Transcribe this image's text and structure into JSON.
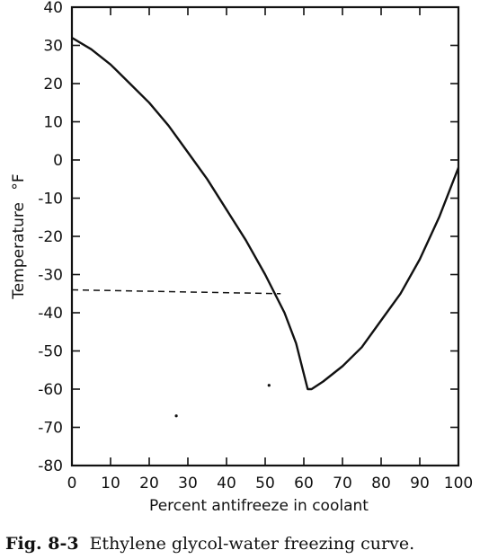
{
  "chart_data": {
    "type": "line",
    "title": "",
    "caption_prefix": "Fig. 8-3",
    "caption": "Ethylene glycol-water freezing curve.",
    "xlabel": "Percent antifreeze in coolant",
    "ylabel": "Temperature",
    "ylabel_unit": "°F",
    "xlim": [
      0,
      100
    ],
    "ylim": [
      -80,
      40
    ],
    "x_ticks": [
      0,
      10,
      20,
      30,
      40,
      50,
      60,
      70,
      80,
      90,
      100
    ],
    "y_ticks": [
      40,
      30,
      20,
      10,
      0,
      -10,
      -20,
      -30,
      -40,
      -50,
      -60,
      -70,
      -80
    ],
    "grid": false,
    "series": [
      {
        "style": "solid",
        "x": [
          0,
          5,
          10,
          15,
          20,
          25,
          30,
          35,
          40,
          45,
          50,
          55,
          58,
          60,
          61,
          62,
          65,
          70,
          75,
          80,
          85,
          90,
          95,
          100
        ],
        "y": [
          32,
          29,
          25,
          20,
          15,
          9,
          2,
          -5,
          -13,
          -21,
          -30,
          -40,
          -48,
          -56,
          -60,
          -60,
          -58,
          -54,
          -49,
          -42,
          -35,
          -26,
          -15,
          -2
        ]
      },
      {
        "style": "dashed",
        "x": [
          0,
          54
        ],
        "y": [
          -34,
          -35
        ]
      }
    ],
    "marks": [
      {
        "x": 27,
        "y": -67
      },
      {
        "x": 51,
        "y": -59
      }
    ]
  }
}
